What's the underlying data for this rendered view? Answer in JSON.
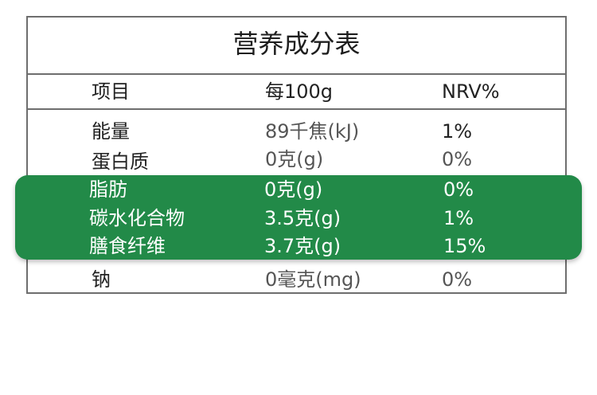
{
  "table": {
    "title": "营养成分表",
    "headers": [
      "项目",
      "每100g",
      "NRV%"
    ],
    "rows": [
      {
        "item": "能量",
        "per100g": "89千焦(kJ)",
        "nrv": "1%"
      },
      {
        "item": "蛋白质",
        "per100g": "0克(g)",
        "nrv": "0%"
      },
      {
        "item": "脂肪",
        "per100g": "0克(g)",
        "nrv": "0%"
      },
      {
        "item": "碳水化合物",
        "per100g": "3.5克(g)",
        "nrv": "1%"
      },
      {
        "item": "膳食纤维",
        "per100g": "3.7克(g)",
        "nrv": "15%"
      },
      {
        "item": "钠",
        "per100g": "0毫克(mg)",
        "nrv": "0%"
      }
    ]
  },
  "colors": {
    "highlight": "#228a48",
    "border": "#6e6e6e"
  }
}
